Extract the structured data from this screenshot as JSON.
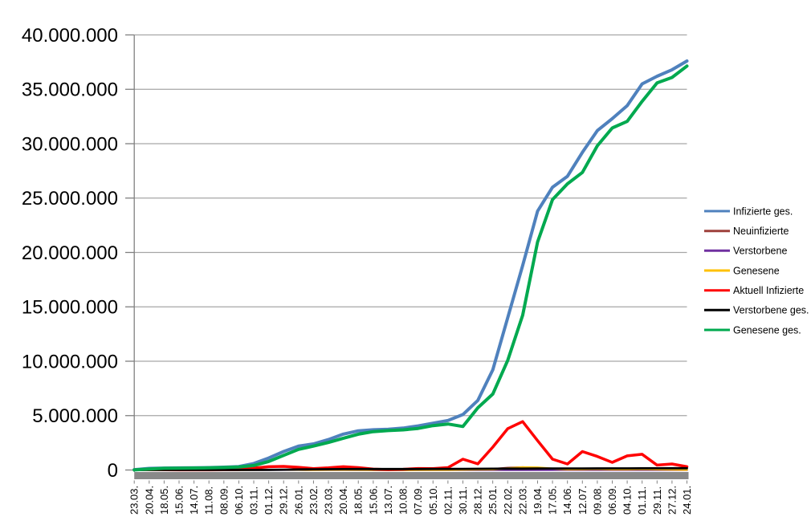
{
  "chart_data": {
    "type": "line",
    "title": "",
    "categories": [
      "23.03.",
      "20.04.",
      "18.05.",
      "15.06.",
      "14.07.",
      "11.08.",
      "08.09.",
      "06.10.",
      "03.11.",
      "01.12.",
      "29.12.",
      "26.01.",
      "23.02.",
      "23.03.",
      "20.04.",
      "18.05.",
      "15.06.",
      "13.07.",
      "10.08.",
      "07.09.",
      "05.10.",
      "02.11.",
      "30.11.",
      "28.12.",
      "25.01.",
      "22.02.",
      "22.03.",
      "19.04.",
      "17.05.",
      "14.06.",
      "12.07.",
      "09.08.",
      "06.09.",
      "04.10.",
      "01.11.",
      "29.11.",
      "27.12.",
      "24.01."
    ],
    "series": [
      {
        "name": "Infizierte ges.",
        "color": "#4F81BD",
        "values": [
          30000,
          150000,
          180000,
          190000,
          200000,
          220000,
          260000,
          320000,
          600000,
          1100000,
          1700000,
          2200000,
          2400000,
          2800000,
          3300000,
          3600000,
          3700000,
          3750000,
          3850000,
          4050000,
          4300000,
          4550000,
          5100000,
          6400000,
          9200000,
          14000000,
          18800000,
          23800000,
          26000000,
          27000000,
          29200000,
          31200000,
          32300000,
          33500000,
          35500000,
          36200000,
          36800000,
          37600000
        ]
      },
      {
        "name": "Neuinfizierte",
        "color": "#9E413C",
        "values": [
          4000,
          2000,
          1000,
          400,
          400,
          1000,
          1500,
          3000,
          15000,
          18000,
          22000,
          12000,
          8000,
          16000,
          25000,
          8000,
          2000,
          1000,
          4000,
          10000,
          8000,
          15000,
          50000,
          40000,
          90000,
          210000,
          250000,
          180000,
          90000,
          40000,
          100000,
          70000,
          40000,
          90000,
          60000,
          40000,
          40000,
          15000
        ]
      },
      {
        "name": "Verstorbene",
        "color": "#7030A0",
        "values": [
          200,
          1500,
          800,
          200,
          100,
          100,
          200,
          200,
          1200,
          3800,
          4700,
          4400,
          2000,
          1200,
          1500,
          1200,
          500,
          200,
          200,
          300,
          400,
          800,
          2000,
          2500,
          1500,
          1500,
          1500,
          1500,
          1200,
          800,
          800,
          800,
          800,
          800,
          1000,
          1000,
          1200,
          800
        ]
      },
      {
        "name": "Genesene",
        "color": "#FFC000",
        "values": [
          2000,
          3000,
          2000,
          1000,
          500,
          1000,
          1000,
          2000,
          8000,
          17000,
          21000,
          18000,
          10000,
          12000,
          20000,
          15000,
          5000,
          1000,
          3000,
          8000,
          8000,
          10000,
          30000,
          45000,
          60000,
          150000,
          250000,
          230000,
          130000,
          60000,
          70000,
          90000,
          50000,
          60000,
          80000,
          50000,
          40000,
          20000
        ]
      },
      {
        "name": "Aktuell Infizierte",
        "color": "#FF0000",
        "values": [
          20000,
          60000,
          20000,
          10000,
          10000,
          10000,
          20000,
          40000,
          180000,
          300000,
          330000,
          250000,
          130000,
          200000,
          300000,
          220000,
          80000,
          40000,
          70000,
          140000,
          130000,
          220000,
          1000000,
          570000,
          2100000,
          3800000,
          4450000,
          2700000,
          1000000,
          550000,
          1700000,
          1250000,
          700000,
          1300000,
          1450000,
          450000,
          550000,
          300000
        ]
      },
      {
        "name": "Verstorbene ges.",
        "color": "#000000",
        "values": [
          1000,
          5000,
          8000,
          9000,
          9000,
          9000,
          9000,
          10000,
          11000,
          17000,
          32000,
          54000,
          69000,
          75000,
          81000,
          87000,
          90000,
          91000,
          92000,
          92000,
          94000,
          96000,
          101000,
          111000,
          117000,
          122000,
          127000,
          133000,
          138000,
          140000,
          142000,
          145000,
          147000,
          150000,
          153000,
          156000,
          161000,
          165000
        ]
      },
      {
        "name": "Genesene ges.",
        "color": "#00A94F",
        "values": [
          9000,
          85000,
          152000,
          171000,
          181000,
          201000,
          231000,
          270000,
          410000,
          780000,
          1340000,
          1900000,
          2200000,
          2530000,
          2920000,
          3290000,
          3530000,
          3620000,
          3690000,
          3820000,
          4080000,
          4230000,
          4000000,
          5720000,
          6980000,
          10080000,
          14220000,
          20970000,
          24860000,
          26310000,
          27360000,
          29810000,
          31450000,
          32050000,
          33900000,
          35590000,
          36090000,
          37140000
        ]
      }
    ],
    "y_axis": {
      "min": 0,
      "max": 40000000,
      "tick_interval": 5000000,
      "tick_labels": [
        "40.000.000",
        "35.000.000",
        "30.000.000",
        "25.000.000",
        "20.000.000",
        "15.000.000",
        "10.000.000",
        "5.000.000",
        "0"
      ]
    },
    "x_axis": {
      "label_rotation_degrees": 90
    },
    "legend": {
      "position": "right"
    },
    "grid": "horizontal"
  },
  "style_colors": {
    "gridline": "#A6A6A6",
    "axis_line": "#808080",
    "axis_band": "#898989",
    "background": "#FFFFFF",
    "text": "#000000"
  }
}
